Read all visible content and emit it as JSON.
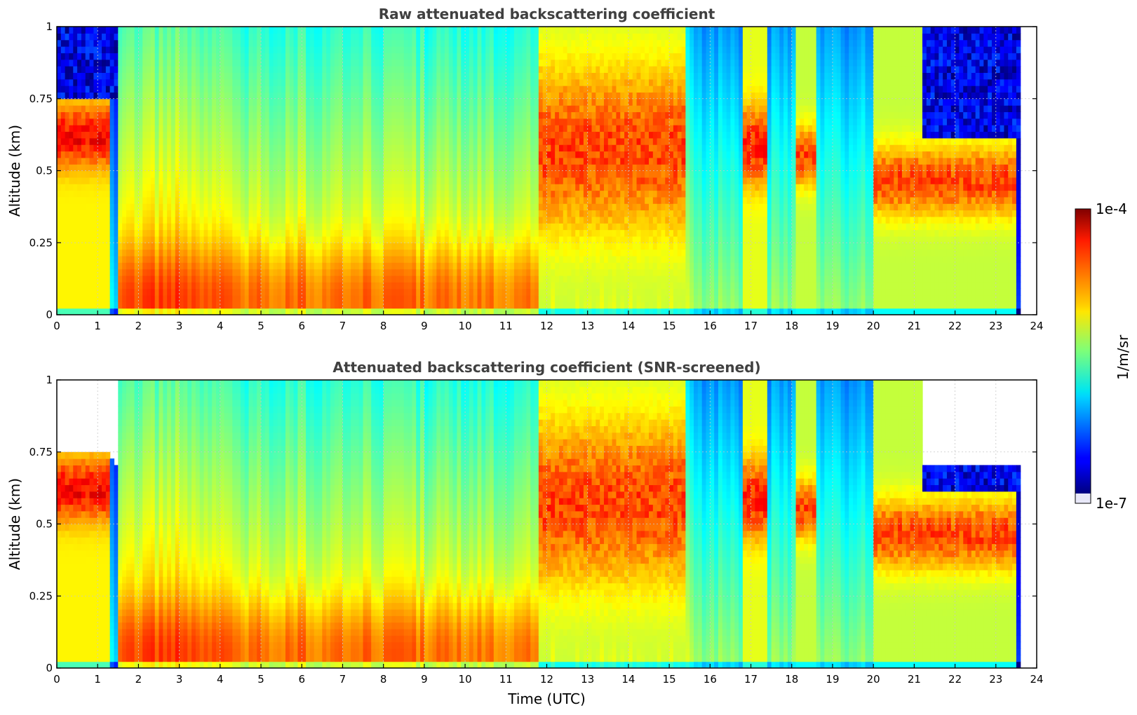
{
  "chart_data": [
    {
      "type": "heatmap",
      "title": "Raw attenuated backscattering coefficient",
      "xlabel": "",
      "ylabel": "Altitude (km)",
      "xlim": [
        0,
        24
      ],
      "ylim": [
        0,
        1
      ],
      "xticks": [
        "0",
        "1",
        "2",
        "3",
        "4",
        "5",
        "6",
        "7",
        "8",
        "9",
        "10",
        "11",
        "12",
        "13",
        "14",
        "15",
        "16",
        "17",
        "18",
        "19",
        "20",
        "21",
        "22",
        "23",
        "24"
      ],
      "yticks": [
        "0",
        "0.25",
        "0.5",
        "0.75",
        "1"
      ],
      "grid": true,
      "data_end_hour": 23.55,
      "layers": {
        "surface_layer_top_km": 0.03,
        "aerosol_bands": [
          {
            "t0": 0.0,
            "t1": 1.3,
            "zlo": 0.52,
            "zhi": 0.72,
            "peak_log10": -4.2
          },
          {
            "t0": 11.8,
            "t1": 15.4,
            "zlo": 0.3,
            "zhi": 0.85,
            "peak_log10": -4.4
          },
          {
            "t0": 16.8,
            "t1": 17.4,
            "zlo": 0.45,
            "zhi": 0.72,
            "peak_log10": -4.3
          },
          {
            "t0": 18.1,
            "t1": 18.6,
            "zlo": 0.45,
            "zhi": 0.65,
            "peak_log10": -4.4
          },
          {
            "t0": 20.0,
            "t1": 23.5,
            "zlo": 0.35,
            "zhi": 0.58,
            "peak_log10": -4.4
          }
        ]
      }
    },
    {
      "type": "heatmap",
      "title": "Attenuated backscattering coefficient (SNR-screened)",
      "xlabel": "Time (UTC)",
      "ylabel": "Altitude (km)",
      "xlim": [
        0,
        24
      ],
      "ylim": [
        0,
        1
      ],
      "xticks": [
        "0",
        "1",
        "2",
        "3",
        "4",
        "5",
        "6",
        "7",
        "8",
        "9",
        "10",
        "11",
        "12",
        "13",
        "14",
        "15",
        "16",
        "17",
        "18",
        "19",
        "20",
        "21",
        "22",
        "23",
        "24"
      ],
      "yticks": [
        "0",
        "0.25",
        "0.5",
        "0.75",
        "1"
      ],
      "grid": true,
      "data_end_hour": 23.55,
      "screened": true
    }
  ],
  "colorbar": {
    "label": "1/m/sr",
    "max_label": "1e-4",
    "min_label": "1e-7",
    "vmin_log10": -7,
    "vmax_log10": -4,
    "colormap": "jet",
    "under_color": "#e8e8f8"
  },
  "colors": {
    "grid": "#c8c8c8",
    "title": "#404040"
  }
}
